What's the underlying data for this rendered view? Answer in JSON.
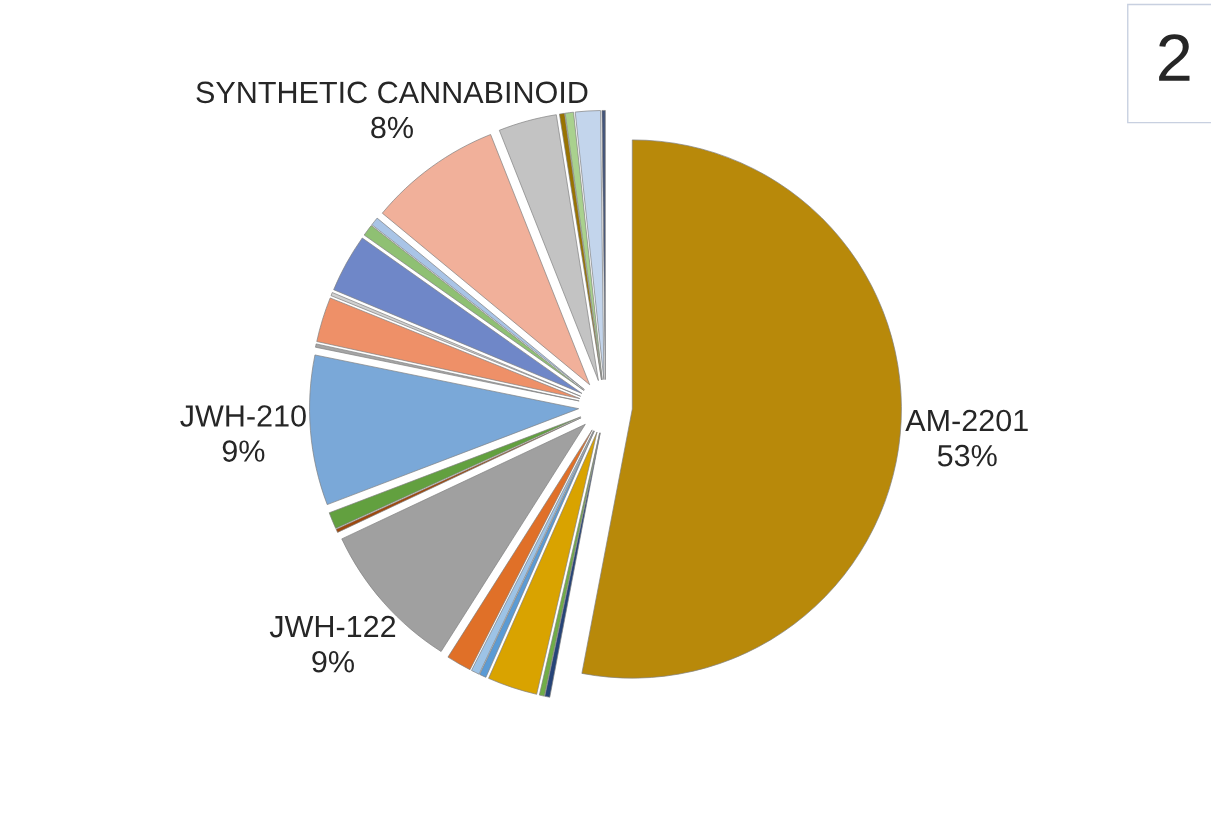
{
  "chart_data": {
    "type": "pie",
    "categories": [
      "AM-2201",
      null,
      null,
      null,
      null,
      null,
      null,
      "JWH-122",
      null,
      null,
      "JWH-210",
      null,
      null,
      null,
      null,
      null,
      null,
      "SYNTHETIC CANNABINOID",
      null,
      null,
      null,
      null,
      null
    ],
    "values": [
      53,
      0.3,
      0.3,
      3,
      0.4,
      0.5,
      1.5,
      9,
      0.2,
      1,
      9,
      0.2,
      2.7,
      0.2,
      3.5,
      0.7,
      0.5,
      8,
      3.5,
      0.3,
      0.5,
      1.5,
      0.2
    ],
    "value_labels": [
      "53%",
      null,
      null,
      null,
      null,
      null,
      null,
      "9%",
      null,
      null,
      "9%",
      null,
      null,
      null,
      null,
      null,
      null,
      "8%",
      null,
      null,
      null,
      null,
      null
    ],
    "colors": [
      "#b8890a",
      "#264478",
      "#70ad47",
      "#d9a300",
      "#5b9bd5",
      "#9dc3e6",
      "#e07028",
      "#a0a0a0",
      "#9e480e",
      "#62a03f",
      "#7aa8d8",
      "#a5a5a5",
      "#ee9068",
      "#d0d0d0",
      "#6f87c8",
      "#8fc073",
      "#a9c4e6",
      "#f1b09a",
      "#c3c3c3",
      "#997300",
      "#a9d18e",
      "#c3d5ec",
      "#43547a"
    ],
    "annotations": [
      "2"
    ]
  }
}
